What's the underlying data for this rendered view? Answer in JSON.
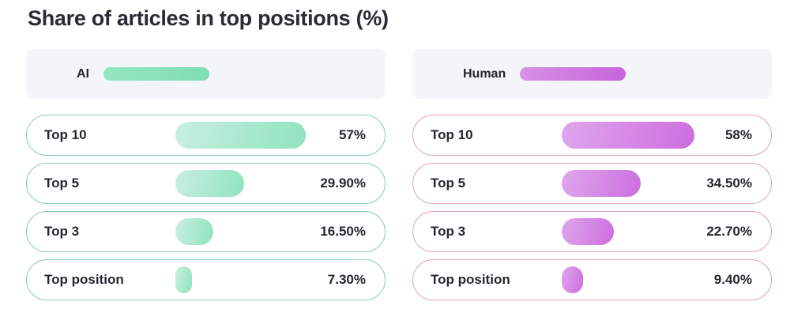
{
  "title": "Share of articles in top positions (%)",
  "chart_data": {
    "type": "bar",
    "orientation": "horizontal",
    "title": "Share of articles in top positions (%)",
    "categories": [
      "Top 10",
      "Top 5",
      "Top 3",
      "Top position"
    ],
    "series": [
      {
        "name": "AI",
        "values": [
          57,
          29.9,
          16.5,
          7.3
        ],
        "value_labels": [
          "57%",
          "29.90%",
          "16.50%",
          "7.30%"
        ],
        "bar_color_start": "#c9efe0",
        "bar_color_end": "#8fe3bf",
        "legend_color_start": "#97e6c4",
        "legend_color_end": "#7eddb2",
        "row_border_color": "#82cfa9"
      },
      {
        "name": "Human",
        "values": [
          58,
          34.5,
          22.7,
          9.4
        ],
        "value_labels": [
          "58%",
          "34.50%",
          "22.70%",
          "9.40%"
        ],
        "bar_color_start": "#dfa6ec",
        "bar_color_end": "#cd6ee0",
        "legend_color_start": "#d693e4",
        "legend_color_end": "#c763dc",
        "row_border_color": "#e0a0c0"
      }
    ],
    "xlim": [
      0,
      100
    ],
    "legend_position": "top",
    "grid": false
  },
  "colors": {
    "background": "#ffffff",
    "legend_card_bg": "#f3f5f9",
    "text": "#2b2b33"
  }
}
